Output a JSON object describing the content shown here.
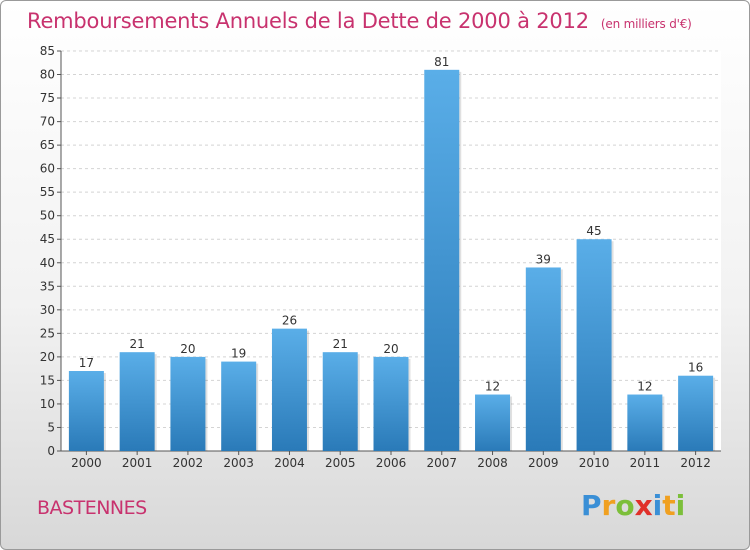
{
  "header": {
    "title": "Remboursements Annuels de la Dette de 2000 à 2012",
    "subtitle": "(en milliers d'€)"
  },
  "footer": {
    "commune": "BASTENNES",
    "brand_letters": [
      {
        "char": "P",
        "color": "#3a8fd6"
      },
      {
        "char": "r",
        "color": "#f0a020"
      },
      {
        "char": "o",
        "color": "#7cbf3a"
      },
      {
        "char": "x",
        "color": "#e0302a"
      },
      {
        "char": "i",
        "color": "#3a8fd6"
      },
      {
        "char": "t",
        "color": "#f0a020"
      },
      {
        "char": "i",
        "color": "#7cbf3a"
      }
    ]
  },
  "chart_data": {
    "type": "bar",
    "categories": [
      "2000",
      "2001",
      "2002",
      "2003",
      "2004",
      "2005",
      "2006",
      "2007",
      "2008",
      "2009",
      "2010",
      "2011",
      "2012"
    ],
    "values": [
      17,
      21,
      20,
      19,
      26,
      21,
      20,
      81,
      12,
      39,
      45,
      12,
      16
    ],
    "ylim": [
      0,
      85
    ],
    "yticks": [
      0,
      5,
      10,
      15,
      20,
      25,
      30,
      35,
      40,
      45,
      50,
      55,
      60,
      65,
      70,
      75,
      80,
      85
    ],
    "grid": true,
    "bar_color_top": "#5aaee8",
    "bar_color_bottom": "#2a7ab8",
    "data_labels": true
  }
}
